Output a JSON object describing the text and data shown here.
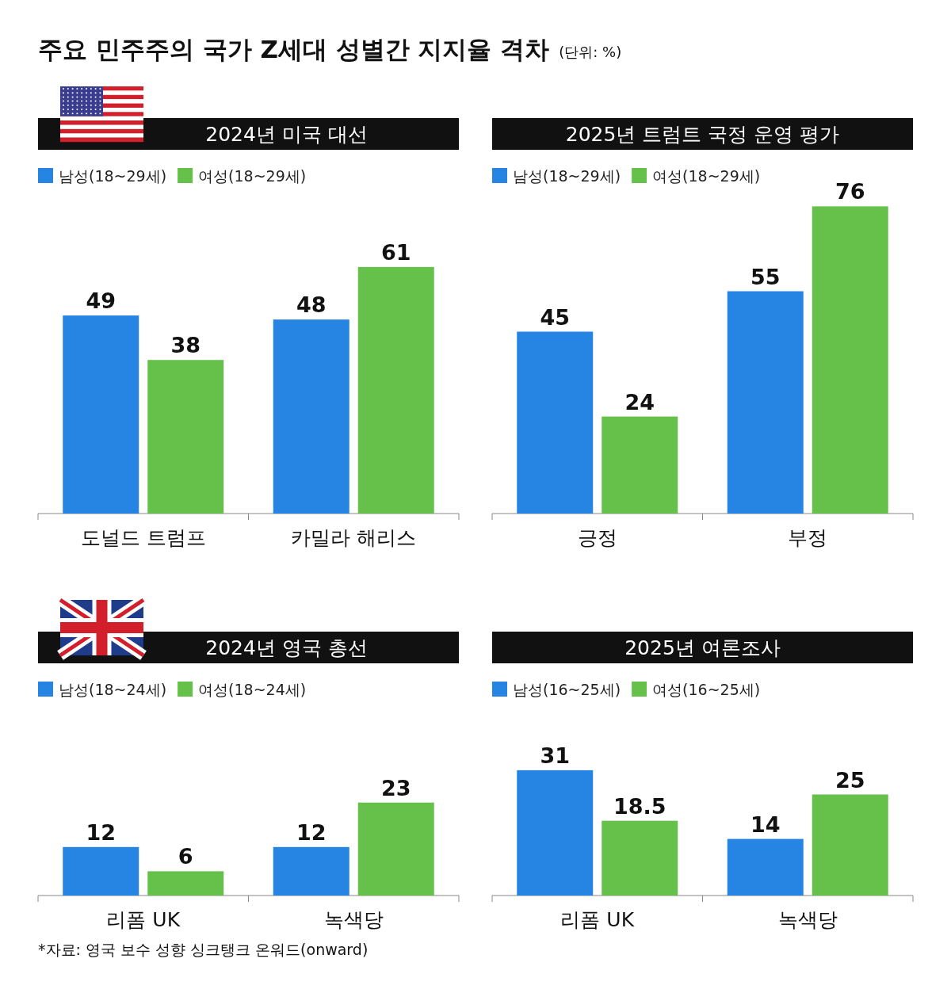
{
  "chart_data": [
    {
      "type": "bar",
      "title": "2024년 미국 대선",
      "annotations": [
        "주요 민주주의 국가 Z세대 성별간 지지율 격차",
        "(단위: %)"
      ],
      "categories": [
        "도널드 트럼프",
        "카밀라 해리스"
      ],
      "legend": "top left",
      "data_labels": true,
      "series": [
        {
          "name": "남성(18~29세)",
          "color": "#2684e3",
          "values": [
            49,
            48
          ]
        },
        {
          "name": "여성(18~29세)",
          "color": "#65c14a",
          "values": [
            38,
            61
          ]
        }
      ]
    },
    {
      "type": "bar",
      "title": "2025년 트럼트 국정 운영 평가",
      "categories": [
        "긍정",
        "부정"
      ],
      "legend": "top left",
      "data_labels": true,
      "series": [
        {
          "name": "남성(18~29세)",
          "color": "#2684e3",
          "values": [
            45,
            55
          ]
        },
        {
          "name": "여성(18~29세)",
          "color": "#65c14a",
          "values": [
            24,
            76
          ]
        }
      ]
    },
    {
      "type": "bar",
      "title": "2024년 영국 총선",
      "annotations": [
        "*자료: 영국 보수 성향 싱크탱크 온워드(onward)"
      ],
      "categories": [
        "리폼 UK",
        "녹색당"
      ],
      "legend": "top left",
      "data_labels": true,
      "series": [
        {
          "name": "남성(18~24세)",
          "color": "#2684e3",
          "values": [
            12,
            12
          ]
        },
        {
          "name": "여성(18~24세)",
          "color": "#65c14a",
          "values": [
            6,
            23
          ]
        }
      ]
    },
    {
      "type": "bar",
      "title": "2025년 여론조사",
      "categories": [
        "리폼 UK",
        "녹색당"
      ],
      "legend": "top left",
      "data_labels": true,
      "series": [
        {
          "name": "남성(16~25세)",
          "color": "#2684e3",
          "values": [
            31,
            14
          ]
        },
        {
          "name": "여성(16~25세)",
          "color": "#65c14a",
          "values": [
            18.5,
            25
          ]
        }
      ]
    }
  ]
}
